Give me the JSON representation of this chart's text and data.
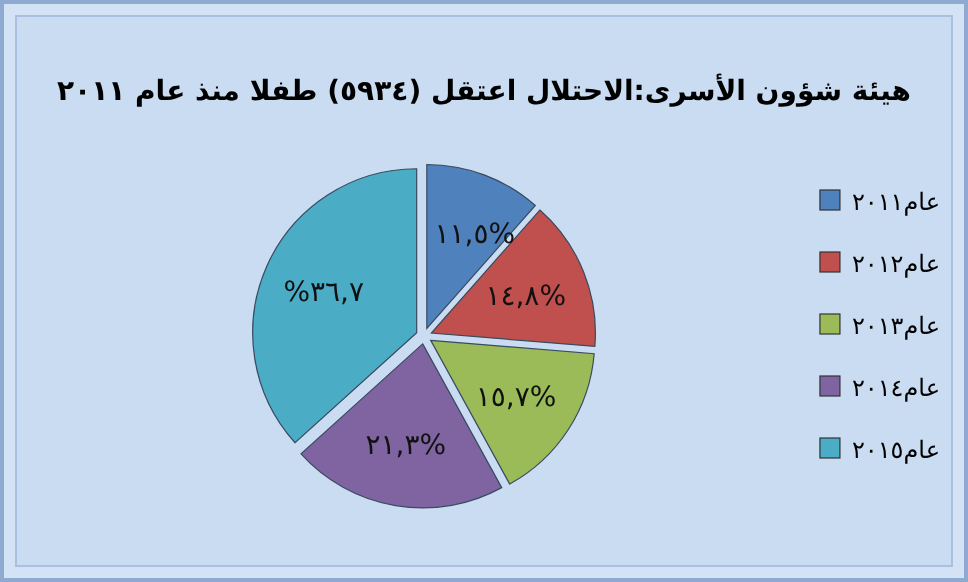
{
  "chart_data": {
    "type": "pie",
    "title": "هيئة شؤون الأسرى:الاحتلال اعتقل (٥٩٣٤) طفلا منذ عام ٢٠١١",
    "categories": [
      "عام٢٠١١",
      "عام٢٠١٢",
      "عام٢٠١٣",
      "عام٢٠١٤",
      "عام٢٠١٥"
    ],
    "values": [
      11.5,
      14.8,
      15.7,
      21.3,
      36.7
    ],
    "colors": [
      "#4f81bd",
      "#c0504d",
      "#9bbb59",
      "#8064a2",
      "#4bacc6"
    ],
    "value_labels": [
      "١١,٥%",
      "١٤,٨%",
      "١٥,٧%",
      "٢١,٣%",
      "%٣٦,٧"
    ],
    "legend": "right"
  }
}
